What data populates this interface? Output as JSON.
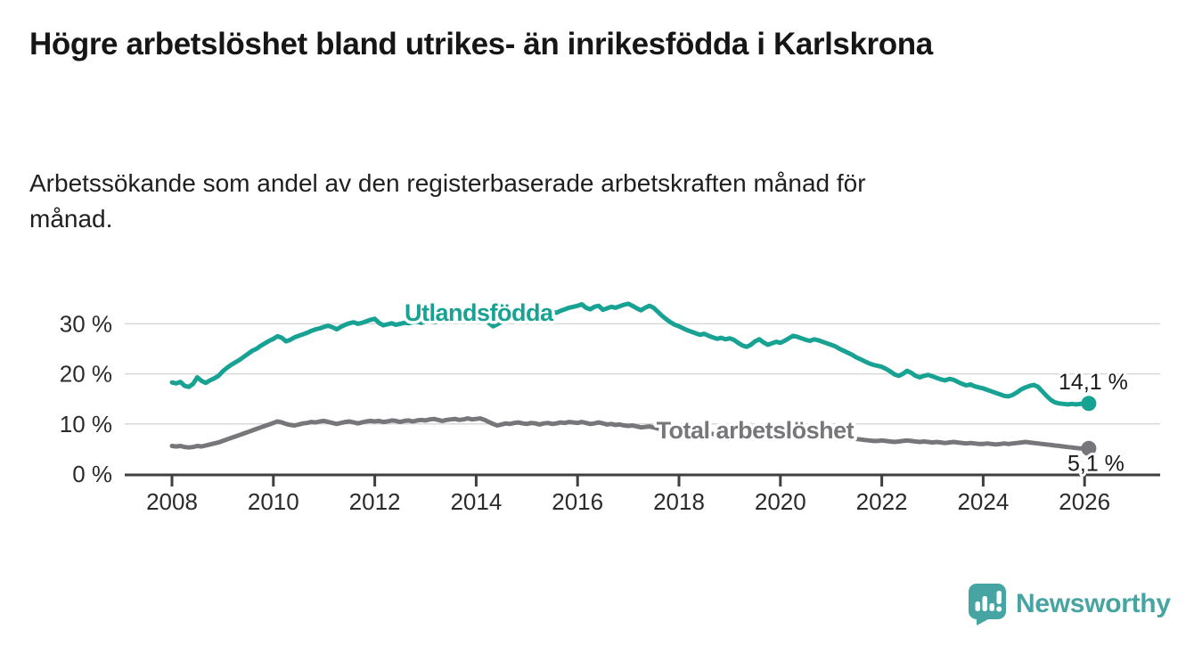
{
  "title": "Högre arbetslöshet bland utrikes- än inrikesfödda i Karlskrona",
  "subtitle": "Arbetssökande som andel av den registerbaserade arbetskraften månad för månad.",
  "branding": {
    "logo_text": "Newsworthy",
    "logo_color": "#46a5a2"
  },
  "chart_data": {
    "type": "line",
    "title": "Högre arbetslöshet bland utrikes- än inrikesfödda i Karlskrona",
    "subtitle": "Arbetssökande som andel av den registerbaserade arbetskraften månad för månad.",
    "xlabel": "",
    "ylabel": "",
    "grid": "horizontal",
    "legend_position": "inline-labels",
    "x_start": 2008.0,
    "x_step_months": 1,
    "xlim": [
      2007.7,
      2026.4
    ],
    "ylim": [
      0,
      36
    ],
    "x_ticks": [
      2008,
      2010,
      2012,
      2014,
      2016,
      2018,
      2020,
      2022,
      2024,
      2026
    ],
    "y_ticks": [
      {
        "value": 0,
        "label": "0 %"
      },
      {
        "value": 10,
        "label": "10 %"
      },
      {
        "value": 20,
        "label": "20 %"
      },
      {
        "value": 30,
        "label": "30 %"
      }
    ],
    "colors": {
      "utlandsfodda": "#18a293",
      "total": "#77777b",
      "grid": "#d8d8d8",
      "axis": "#3f3f3f",
      "tick_text": "#2b2b2b",
      "end_label_text": "#1a1a1a"
    },
    "series": [
      {
        "name": "Utlandsfödda",
        "color": "#18a293",
        "end_label": "14,1 %",
        "end_value": 14.1,
        "label": {
          "year": 2014.05,
          "value": 32.2
        },
        "values": [
          18.3,
          18.1,
          18.4,
          17.6,
          17.4,
          18.0,
          19.3,
          18.6,
          18.2,
          18.7,
          19.1,
          19.6,
          20.5,
          21.2,
          21.8,
          22.3,
          22.8,
          23.4,
          24.0,
          24.6,
          25.0,
          25.6,
          26.1,
          26.6,
          27.0,
          27.5,
          27.2,
          26.5,
          26.8,
          27.3,
          27.6,
          27.9,
          28.2,
          28.6,
          28.9,
          29.1,
          29.4,
          29.6,
          29.3,
          28.9,
          29.4,
          29.8,
          30.1,
          30.3,
          30.0,
          30.2,
          30.5,
          30.8,
          31.0,
          30.2,
          29.7,
          29.9,
          30.1,
          29.8,
          30.0,
          30.2,
          30.1,
          30.3,
          30.4,
          30.2,
          30.4,
          30.6,
          30.3,
          30.5,
          30.8,
          30.6,
          30.9,
          31.1,
          30.8,
          31.0,
          31.2,
          30.9,
          31.0,
          31.2,
          30.8,
          30.2,
          29.5,
          29.9,
          30.4,
          30.7,
          30.9,
          31.1,
          31.3,
          31.2,
          31.4,
          31.6,
          31.3,
          31.6,
          31.9,
          32.1,
          32.4,
          32.2,
          32.6,
          32.9,
          33.2,
          33.4,
          33.6,
          33.9,
          33.2,
          32.9,
          33.4,
          33.6,
          32.8,
          33.1,
          33.4,
          33.2,
          33.5,
          33.8,
          34.0,
          33.6,
          33.1,
          32.7,
          33.2,
          33.6,
          33.2,
          32.4,
          31.6,
          30.9,
          30.3,
          29.8,
          29.5,
          29.1,
          28.7,
          28.4,
          28.1,
          27.8,
          28.0,
          27.6,
          27.3,
          27.0,
          27.2,
          26.9,
          27.1,
          26.8,
          26.2,
          25.7,
          25.4,
          25.8,
          26.5,
          26.9,
          26.3,
          25.8,
          26.1,
          26.4,
          26.2,
          26.6,
          27.1,
          27.6,
          27.4,
          27.1,
          26.8,
          26.6,
          26.9,
          26.7,
          26.4,
          26.1,
          25.8,
          25.5,
          25.0,
          24.6,
          24.2,
          23.8,
          23.3,
          22.9,
          22.5,
          22.1,
          21.8,
          21.6,
          21.4,
          21.0,
          20.5,
          19.9,
          19.6,
          20.0,
          20.6,
          20.2,
          19.6,
          19.3,
          19.6,
          19.8,
          19.5,
          19.2,
          18.9,
          18.7,
          19.0,
          18.8,
          18.4,
          18.0,
          17.7,
          17.9,
          17.5,
          17.3,
          17.1,
          16.8,
          16.5,
          16.2,
          15.9,
          15.6,
          15.5,
          15.8,
          16.3,
          16.9,
          17.3,
          17.6,
          17.8,
          17.4,
          16.5,
          15.6,
          14.8,
          14.3,
          14.1,
          14.0,
          13.9,
          14.0,
          13.9,
          14.0,
          14.0,
          14.1
        ]
      },
      {
        "name": "Total arbetslöshet",
        "color": "#77777b",
        "end_label": "5,1 %",
        "end_value": 5.1,
        "label": {
          "year": 2019.5,
          "value": 8.7
        },
        "values": [
          5.6,
          5.5,
          5.6,
          5.4,
          5.3,
          5.4,
          5.6,
          5.5,
          5.7,
          5.9,
          6.1,
          6.3,
          6.6,
          6.9,
          7.2,
          7.5,
          7.8,
          8.1,
          8.4,
          8.7,
          9.0,
          9.3,
          9.6,
          9.9,
          10.2,
          10.5,
          10.3,
          10.0,
          9.8,
          9.7,
          9.9,
          10.1,
          10.2,
          10.4,
          10.3,
          10.5,
          10.6,
          10.4,
          10.2,
          10.0,
          10.2,
          10.4,
          10.5,
          10.3,
          10.1,
          10.3,
          10.5,
          10.6,
          10.5,
          10.6,
          10.4,
          10.5,
          10.7,
          10.6,
          10.4,
          10.6,
          10.7,
          10.5,
          10.7,
          10.8,
          10.7,
          10.9,
          11.0,
          10.8,
          10.6,
          10.8,
          10.9,
          11.0,
          10.8,
          10.9,
          11.1,
          10.9,
          11.0,
          11.1,
          10.8,
          10.4,
          10.0,
          9.7,
          9.9,
          10.1,
          10.0,
          10.2,
          10.3,
          10.1,
          10.0,
          10.2,
          10.1,
          9.9,
          10.1,
          10.2,
          10.0,
          10.1,
          10.3,
          10.2,
          10.4,
          10.3,
          10.2,
          10.4,
          10.2,
          10.0,
          10.1,
          10.3,
          10.1,
          9.9,
          10.0,
          9.8,
          9.9,
          9.7,
          9.6,
          9.7,
          9.5,
          9.3,
          9.4,
          9.5,
          9.3,
          9.1,
          9.0,
          8.9,
          9.0,
          8.8,
          8.7,
          8.5,
          8.3,
          8.1,
          8.2,
          8.4,
          8.3,
          8.1,
          8.0,
          7.9,
          8.0,
          7.9,
          7.8,
          7.7,
          7.6,
          7.5,
          7.6,
          7.7,
          7.8,
          7.7,
          7.6,
          7.7,
          7.8,
          7.9,
          8.0,
          8.2,
          8.5,
          8.7,
          8.6,
          8.5,
          8.4,
          8.3,
          8.2,
          8.1,
          8.0,
          7.9,
          7.8,
          7.7,
          7.5,
          7.3,
          7.2,
          7.1,
          7.0,
          6.9,
          6.8,
          6.7,
          6.6,
          6.6,
          6.7,
          6.6,
          6.5,
          6.4,
          6.5,
          6.6,
          6.7,
          6.6,
          6.5,
          6.4,
          6.5,
          6.4,
          6.3,
          6.4,
          6.3,
          6.2,
          6.3,
          6.4,
          6.3,
          6.2,
          6.1,
          6.2,
          6.1,
          6.0,
          6.0,
          6.1,
          6.0,
          5.9,
          6.0,
          6.1,
          6.0,
          6.1,
          6.2,
          6.3,
          6.4,
          6.3,
          6.2,
          6.1,
          6.0,
          5.9,
          5.8,
          5.7,
          5.6,
          5.5,
          5.4,
          5.3,
          5.2,
          5.1,
          5.1,
          5.1
        ]
      }
    ]
  }
}
